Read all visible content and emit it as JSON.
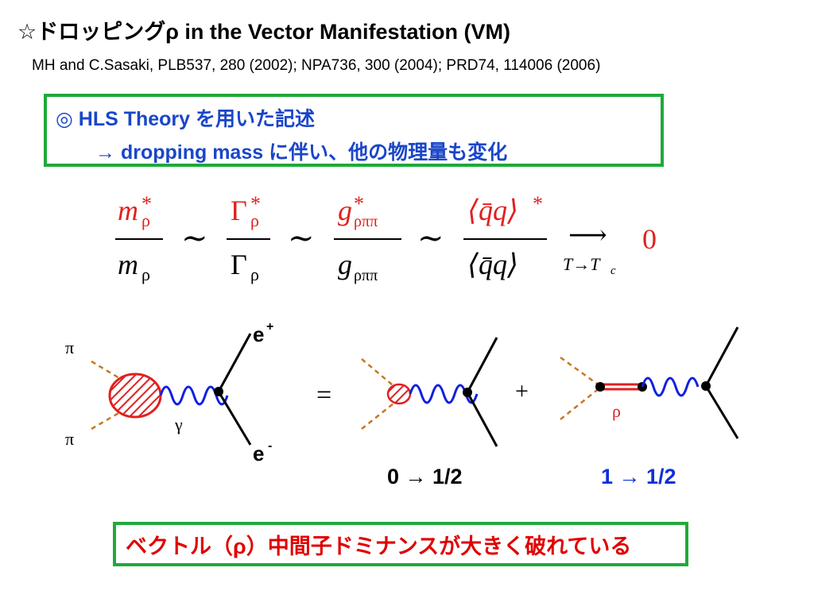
{
  "slide": {
    "title": "☆ドロッピングρ in the Vector Manifestation (VM)",
    "references": "MH and C.Sasaki, PLB537, 280 (2002); NPA736, 300 (2004); PRD74, 114006 (2006)",
    "hls_box": {
      "line1": "◎ HLS Theory を用いた記述",
      "line2": "→  dropping mass に伴い、他の物理量も変化"
    },
    "formula": {
      "m_num": "m",
      "m_den": "m",
      "gamma_num": "Γ",
      "gamma_den": "Γ",
      "g_num": "g",
      "g_den": "g",
      "sub_rho": "ρ",
      "sub_rhopipi": "ρππ",
      "star": "*",
      "qq_num": "⟨q̄q⟩",
      "qq_den": "⟨q̄q⟩",
      "sim": "∼",
      "arrow": "⟶",
      "limit": "T→T",
      "limit_sub": "c",
      "result": "0",
      "red_color": "#e02020"
    },
    "diagram": {
      "pi_top": "π",
      "pi_bottom": "π",
      "gamma": "γ",
      "e_plus": "e",
      "e_plus_sup": "+",
      "e_minus": "e",
      "e_minus_sup": "-",
      "equals": "=",
      "plus": "+",
      "rho_label": "ρ",
      "wave_color": "#1020e0",
      "pion_line_color": "#c87820",
      "blob_color": "#e02020"
    },
    "transitions": {
      "first": "0 → 1/2",
      "second": "1 → 1/2"
    },
    "conclusion": "ベクトル（ρ）中間子ドミナンスが大きく破れている"
  }
}
